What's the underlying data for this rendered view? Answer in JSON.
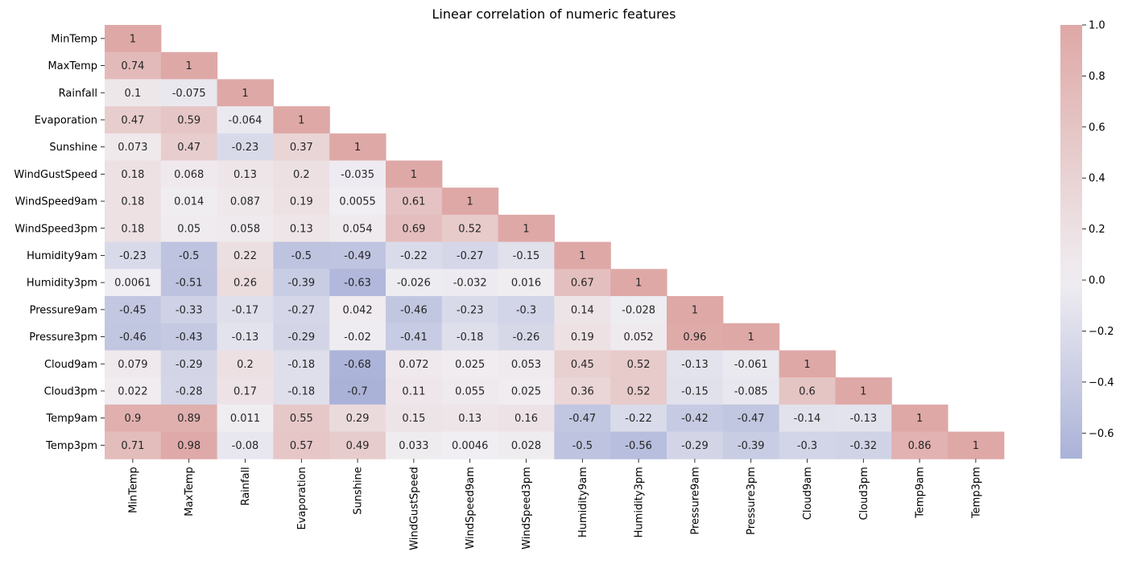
{
  "chart_data": {
    "type": "heatmap",
    "title": "Linear correlation of numeric features",
    "xlabel": "",
    "ylabel": "",
    "categories": [
      "MinTemp",
      "MaxTemp",
      "Rainfall",
      "Evaporation",
      "Sunshine",
      "WindGustSpeed",
      "WindSpeed9am",
      "WindSpeed3pm",
      "Humidity9am",
      "Humidity3pm",
      "Pressure9am",
      "Pressure3pm",
      "Cloud9am",
      "Cloud3pm",
      "Temp9am",
      "Temp3pm"
    ],
    "mask": "upper triangle (lower triangle incl. diagonal shown)",
    "annotations": [
      [
        "1"
      ],
      [
        "0.74",
        "1"
      ],
      [
        "0.1",
        "-0.075",
        "1"
      ],
      [
        "0.47",
        "0.59",
        "-0.064",
        "1"
      ],
      [
        "0.073",
        "0.47",
        "-0.23",
        "0.37",
        "1"
      ],
      [
        "0.18",
        "0.068",
        "0.13",
        "0.2",
        "-0.035",
        "1"
      ],
      [
        "0.18",
        "0.014",
        "0.087",
        "0.19",
        "0.0055",
        "0.61",
        "1"
      ],
      [
        "0.18",
        "0.05",
        "0.058",
        "0.13",
        "0.054",
        "0.69",
        "0.52",
        "1"
      ],
      [
        "-0.23",
        "-0.5",
        "0.22",
        "-0.5",
        "-0.49",
        "-0.22",
        "-0.27",
        "-0.15",
        "1"
      ],
      [
        "0.0061",
        "-0.51",
        "0.26",
        "-0.39",
        "-0.63",
        "-0.026",
        "-0.032",
        "0.016",
        "0.67",
        "1"
      ],
      [
        "-0.45",
        "-0.33",
        "-0.17",
        "-0.27",
        "0.042",
        "-0.46",
        "-0.23",
        "-0.3",
        "0.14",
        "-0.028",
        "1"
      ],
      [
        "-0.46",
        "-0.43",
        "-0.13",
        "-0.29",
        "-0.02",
        "-0.41",
        "-0.18",
        "-0.26",
        "0.19",
        "0.052",
        "0.96",
        "1"
      ],
      [
        "0.079",
        "-0.29",
        "0.2",
        "-0.18",
        "-0.68",
        "0.072",
        "0.025",
        "0.053",
        "0.45",
        "0.52",
        "-0.13",
        "-0.061",
        "1"
      ],
      [
        "0.022",
        "-0.28",
        "0.17",
        "-0.18",
        "-0.7",
        "0.11",
        "0.055",
        "0.025",
        "0.36",
        "0.52",
        "-0.15",
        "-0.085",
        "0.6",
        "1"
      ],
      [
        "0.9",
        "0.89",
        "0.011",
        "0.55",
        "0.29",
        "0.15",
        "0.13",
        "0.16",
        "-0.47",
        "-0.22",
        "-0.42",
        "-0.47",
        "-0.14",
        "-0.13",
        "1"
      ],
      [
        "0.71",
        "0.98",
        "-0.08",
        "0.57",
        "0.49",
        "0.033",
        "0.0046",
        "0.028",
        "-0.5",
        "-0.56",
        "-0.29",
        "-0.39",
        "-0.3",
        "-0.32",
        "0.86",
        "1"
      ]
    ],
    "colorbar": {
      "ticks": [
        "1.0",
        "0.8",
        "0.6",
        "0.4",
        "0.2",
        "0.0",
        "−0.2",
        "−0.4",
        "−0.6"
      ],
      "range": [
        -0.7,
        1.0
      ]
    },
    "colors": {
      "negative": "#aab2d8",
      "neutral": "#f0eef2",
      "positive": "#dea8a6",
      "text": "#262626"
    }
  }
}
